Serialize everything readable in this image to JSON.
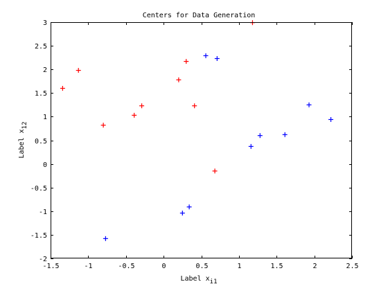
{
  "chart_data": {
    "type": "scatter",
    "title": "Centers for Data Generation",
    "xlabel": {
      "main": "Label x",
      "sub": "i1"
    },
    "ylabel": {
      "main": "Label x",
      "sub": "12"
    },
    "xlim": [
      -1.5,
      2.5
    ],
    "ylim": [
      -2,
      3
    ],
    "xticks": [
      -1.5,
      -1,
      -0.5,
      0,
      0.5,
      1,
      1.5,
      2,
      2.5
    ],
    "yticks": [
      -2,
      -1.5,
      -1,
      -0.5,
      0,
      0.5,
      1,
      1.5,
      2,
      2.5,
      3
    ],
    "xtick_labels": [
      "-1.5",
      "-1",
      "-0.5",
      "0",
      "0.5",
      "1",
      "1.5",
      "2",
      "2.5"
    ],
    "ytick_labels": [
      "-2",
      "-1.5",
      "-1",
      "-0.5",
      "0",
      "0.5",
      "1",
      "1.5",
      "2",
      "2.5",
      "3"
    ],
    "grid": false,
    "marker": "+",
    "series": [
      {
        "color": "#ff0000",
        "points": [
          [
            -1.34,
            1.6
          ],
          [
            -1.13,
            1.98
          ],
          [
            -0.8,
            0.82
          ],
          [
            -0.39,
            1.03
          ],
          [
            -0.29,
            1.23
          ],
          [
            0.2,
            1.78
          ],
          [
            0.3,
            2.17
          ],
          [
            0.41,
            1.23
          ],
          [
            0.68,
            -0.15
          ],
          [
            1.18,
            2.99
          ]
        ]
      },
      {
        "color": "#0000ff",
        "points": [
          [
            -0.77,
            -1.58
          ],
          [
            0.25,
            -1.04
          ],
          [
            0.34,
            -0.91
          ],
          [
            0.56,
            2.29
          ],
          [
            0.71,
            2.23
          ],
          [
            1.16,
            0.37
          ],
          [
            1.28,
            0.6
          ],
          [
            1.61,
            0.62
          ],
          [
            1.93,
            1.25
          ],
          [
            2.22,
            0.94
          ]
        ]
      }
    ]
  }
}
